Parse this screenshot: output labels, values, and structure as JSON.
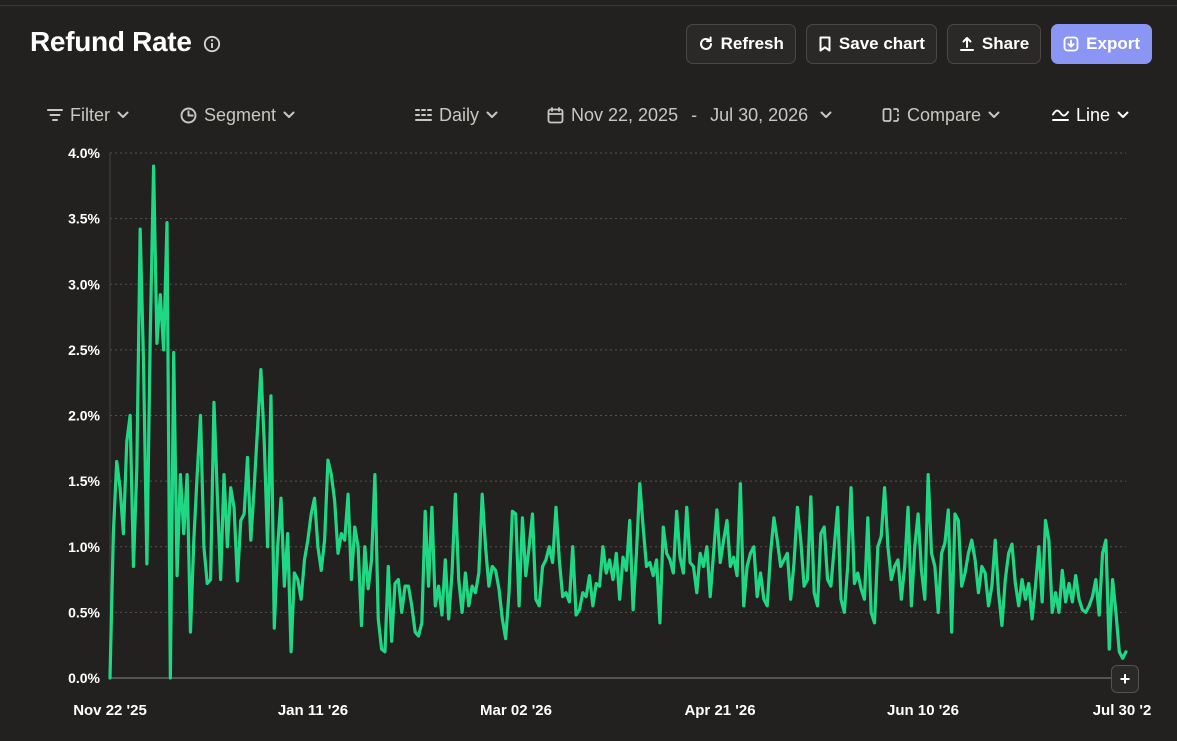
{
  "header": {
    "title": "Refund Rate",
    "info_icon": "info-icon"
  },
  "actions": {
    "refresh": "Refresh",
    "save_chart": "Save chart",
    "share": "Share",
    "export": "Export"
  },
  "toolbar": {
    "filter": "Filter",
    "segment": "Segment",
    "interval": "Daily",
    "date_start": "Nov 22, 2025",
    "date_end": "Jul 30, 2026",
    "compare": "Compare",
    "chart_type": "Line"
  },
  "colors": {
    "background": "#23211f",
    "line": "#1fd884",
    "accent": "#8b96f4",
    "grid": "#55534f"
  },
  "chart_data": {
    "type": "line",
    "title": "Refund Rate",
    "x_start": "2025-11-22",
    "x_end": "2026-07-30",
    "x_tick_labels": [
      "Nov 22 '25",
      "Jan 11 '26",
      "Mar 02 '26",
      "Apr 21 '26",
      "Jun 10 '26",
      "Jul 30 '2"
    ],
    "y_tick_labels": [
      "0.0%",
      "0.5%",
      "1.0%",
      "1.5%",
      "2.0%",
      "2.5%",
      "3.0%",
      "3.5%",
      "4.0%"
    ],
    "ylim": [
      0,
      4.0
    ],
    "grid": "horizontal dashed",
    "series": [
      {
        "values": [
          0.0,
          1.1,
          1.65,
          1.45,
          1.1,
          1.8,
          2.0,
          0.85,
          1.6,
          3.42,
          2.4,
          0.87,
          2.6,
          3.9,
          2.55,
          2.92,
          2.5,
          3.47,
          0.0,
          2.48,
          0.78,
          1.55,
          1.1,
          1.55,
          0.35,
          1.05,
          1.55,
          2.0,
          1.0,
          0.72,
          0.75,
          2.1,
          1.4,
          0.75,
          1.55,
          1.0,
          1.45,
          1.3,
          0.74,
          1.2,
          1.25,
          1.68,
          1.05,
          1.45,
          1.9,
          2.35,
          1.8,
          1.0,
          2.15,
          0.38,
          1.0,
          1.37,
          0.7,
          1.1,
          0.2,
          0.8,
          0.75,
          0.6,
          0.9,
          1.05,
          1.25,
          1.37,
          1.0,
          0.82,
          1.05,
          1.66,
          1.55,
          1.35,
          0.95,
          1.1,
          1.05,
          1.4,
          0.75,
          1.15,
          1.0,
          0.4,
          1.0,
          0.68,
          0.9,
          1.55,
          0.45,
          0.22,
          0.2,
          0.85,
          0.28,
          0.72,
          0.75,
          0.5,
          0.7,
          0.7,
          0.55,
          0.35,
          0.32,
          0.42,
          1.27,
          0.7,
          1.3,
          0.55,
          0.7,
          0.48,
          0.9,
          0.45,
          0.8,
          1.4,
          0.75,
          0.5,
          0.8,
          0.55,
          0.7,
          0.65,
          0.8,
          1.4,
          1.0,
          0.7,
          0.85,
          0.82,
          0.68,
          0.45,
          0.3,
          0.65,
          1.27,
          1.25,
          0.55,
          1.22,
          0.78,
          1.0,
          1.25,
          0.6,
          0.55,
          0.85,
          0.9,
          1.0,
          0.88,
          1.3,
          0.9,
          0.62,
          0.65,
          0.58,
          1.0,
          0.48,
          0.52,
          0.65,
          0.62,
          0.78,
          0.55,
          0.72,
          0.7,
          1.0,
          0.8,
          0.9,
          0.75,
          0.95,
          0.6,
          0.92,
          0.82,
          1.2,
          0.52,
          0.95,
          1.48,
          1.15,
          0.85,
          0.88,
          0.78,
          0.9,
          0.42,
          1.15,
          0.95,
          0.9,
          0.8,
          1.27,
          0.92,
          0.8,
          1.3,
          0.88,
          0.85,
          0.65,
          0.95,
          0.85,
          1.0,
          0.62,
          0.95,
          1.28,
          0.88,
          1.05,
          1.2,
          0.85,
          0.92,
          0.78,
          1.48,
          0.55,
          0.85,
          0.95,
          1.0,
          0.62,
          0.8,
          0.6,
          0.55,
          0.95,
          1.22,
          1.05,
          0.85,
          0.9,
          0.95,
          0.6,
          0.88,
          1.3,
          1.05,
          0.7,
          0.75,
          1.38,
          0.65,
          0.55,
          1.1,
          1.15,
          0.75,
          0.7,
          1.0,
          1.3,
          0.6,
          0.5,
          0.85,
          1.45,
          0.72,
          0.8,
          0.68,
          0.6,
          1.22,
          0.5,
          0.42,
          1.0,
          1.08,
          1.45,
          1.0,
          0.75,
          0.85,
          0.9,
          0.6,
          0.85,
          1.3,
          0.55,
          1.0,
          1.25,
          0.82,
          0.6,
          1.55,
          0.95,
          0.85,
          0.5,
          0.95,
          1.03,
          1.28,
          0.35,
          1.25,
          1.2,
          0.7,
          0.8,
          0.95,
          1.05,
          0.9,
          0.65,
          0.85,
          0.8,
          0.55,
          0.7,
          1.05,
          0.65,
          0.4,
          0.75,
          0.95,
          1.02,
          0.72,
          0.55,
          0.75,
          0.6,
          0.72,
          0.45,
          0.7,
          1.0,
          0.58,
          1.2,
          1.05,
          0.5,
          0.65,
          0.5,
          0.82,
          0.58,
          0.72,
          0.58,
          0.78,
          0.6,
          0.52,
          0.5,
          0.55,
          0.62,
          0.75,
          0.48,
          0.95,
          1.05,
          0.22,
          0.75,
          0.5,
          0.2,
          0.15,
          0.2
        ]
      }
    ]
  }
}
